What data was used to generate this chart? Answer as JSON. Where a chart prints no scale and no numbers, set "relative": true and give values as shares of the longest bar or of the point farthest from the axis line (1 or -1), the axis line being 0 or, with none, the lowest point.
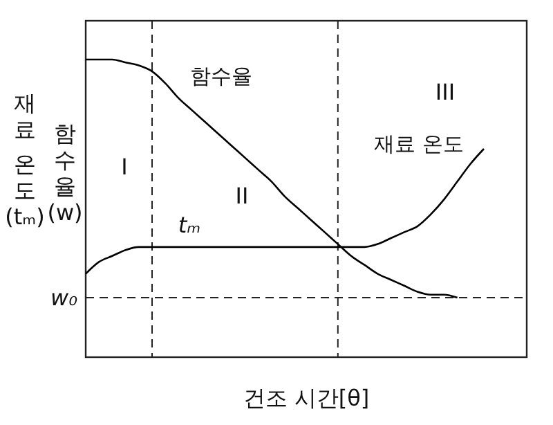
{
  "chart_data": {
    "type": "line",
    "relative": true,
    "xlabel": "건조 시간[θ]",
    "ylabel": "함수율(w)",
    "categories": [
      null,
      null,
      null,
      null,
      null,
      null,
      null,
      null,
      null,
      null,
      null,
      null,
      null,
      null,
      null,
      null,
      null,
      null,
      null,
      null,
      null,
      null,
      null,
      null,
      null,
      null,
      null,
      null,
      null,
      null,
      null
    ],
    "series": [
      {
        "name": "함수율",
        "color": "#000000",
        "values": [
          1,
          1,
          1,
          0.99,
          0.98,
          0.96,
          0.92,
          0.87,
          0.83,
          0.79,
          0.75,
          0.71,
          0.67,
          0.63,
          0.59,
          0.54,
          0.5,
          0.46,
          0.42,
          0.38,
          0.34,
          0.31,
          0.28,
          0.26,
          0.24,
          0.22,
          0.21,
          0.21,
          0.2,
          null,
          null
        ]
      },
      {
        "name": "재료 온도",
        "color": "#000000",
        "values": [
          0.28,
          0.32,
          0.34,
          0.36,
          0.37,
          0.37,
          0.37,
          0.37,
          0.37,
          0.37,
          0.37,
          0.37,
          0.37,
          0.37,
          0.37,
          0.37,
          0.37,
          0.37,
          0.37,
          0.37,
          0.37,
          0.37,
          0.38,
          0.4,
          0.42,
          0.44,
          0.48,
          0.53,
          0.59,
          0.65,
          0.7
        ]
      }
    ],
    "ref_lines": [
      {
        "axis": "y",
        "value": 0.2,
        "label": "w₀",
        "line_style": "dashed"
      }
    ],
    "annotations": [
      "재료 온도(tₘ)",
      "I",
      "II",
      "III",
      "tₘ"
    ]
  }
}
